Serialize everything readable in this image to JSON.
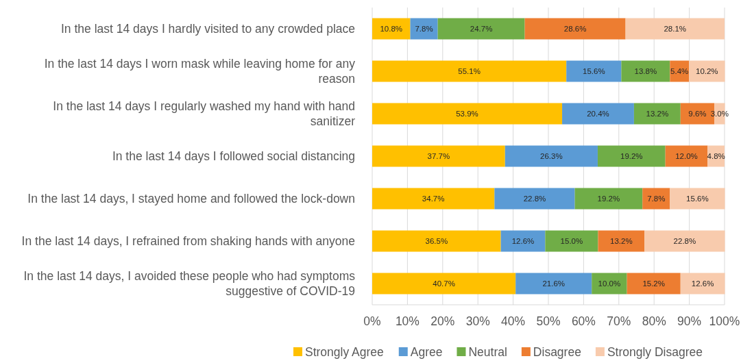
{
  "chart_data": {
    "type": "bar",
    "orientation": "horizontal",
    "stacked": true,
    "categories": [
      "In the last 14 days I hardly visited to any crowded place",
      "In the last 14 days I worn mask while leaving home for any reason",
      "In the last 14 days I regularly washed my hand with hand sanitizer",
      "In the last 14 days I followed social distancing",
      "In the last 14 days, I stayed home and followed the lock-down",
      "In the last 14 days, I refrained from shaking hands with anyone",
      "In the last 14 days, I avoided these people who had symptoms suggestive of COVID-19"
    ],
    "series": [
      {
        "name": "Strongly Agree",
        "color": "#ffc000",
        "values": [
          10.8,
          55.1,
          53.9,
          37.7,
          34.7,
          36.5,
          40.7
        ],
        "value_labels": [
          "10.8%",
          "55.1%",
          "53.9%",
          "37.7%",
          "34.7%",
          "36.5%",
          "40.7%"
        ]
      },
      {
        "name": "Agree",
        "color": "#5b9bd5",
        "values": [
          7.8,
          15.6,
          20.4,
          26.3,
          22.8,
          12.6,
          21.6
        ],
        "value_labels": [
          "7.8%",
          "15.6%",
          "20.4%",
          "26.3%",
          "22.8%",
          "12.6%",
          "21.6%"
        ]
      },
      {
        "name": "Neutral",
        "color": "#70ad47",
        "values": [
          24.7,
          13.8,
          13.2,
          19.2,
          19.2,
          15.0,
          10.0
        ],
        "value_labels": [
          "24.7%",
          "13.8%",
          "13.2%",
          "19.2%",
          "19.2%",
          "15.0%",
          "10.0%"
        ]
      },
      {
        "name": "Disagree",
        "color": "#ed7d31",
        "values": [
          28.6,
          5.4,
          9.6,
          12.0,
          7.8,
          13.2,
          15.2
        ],
        "value_labels": [
          "28.6%",
          "5.4%",
          "9.6%",
          "12.0%",
          "7.8%",
          "13.2%",
          "15.2%"
        ]
      },
      {
        "name": "Strongly Disagree",
        "color": "#f8cbad",
        "values": [
          28.1,
          10.2,
          3.0,
          4.8,
          15.6,
          22.8,
          12.6
        ],
        "value_labels": [
          "28.1%",
          "10.2%",
          "3.0%",
          "4.8%",
          "15.6%",
          "22.8%",
          "12.6%"
        ]
      }
    ],
    "xlim": [
      0,
      100
    ],
    "xticks": [
      {
        "value": 0,
        "label": "0%"
      },
      {
        "value": 10,
        "label": "10%"
      },
      {
        "value": 20,
        "label": "20%"
      },
      {
        "value": 30,
        "label": "30%"
      },
      {
        "value": 40,
        "label": "40%"
      },
      {
        "value": 50,
        "label": "50%"
      },
      {
        "value": 60,
        "label": "60%"
      },
      {
        "value": 70,
        "label": "70%"
      },
      {
        "value": 80,
        "label": "80%"
      },
      {
        "value": 90,
        "label": "90%"
      },
      {
        "value": 100,
        "label": "100%"
      }
    ],
    "grid": "x",
    "legend": "bottom"
  }
}
